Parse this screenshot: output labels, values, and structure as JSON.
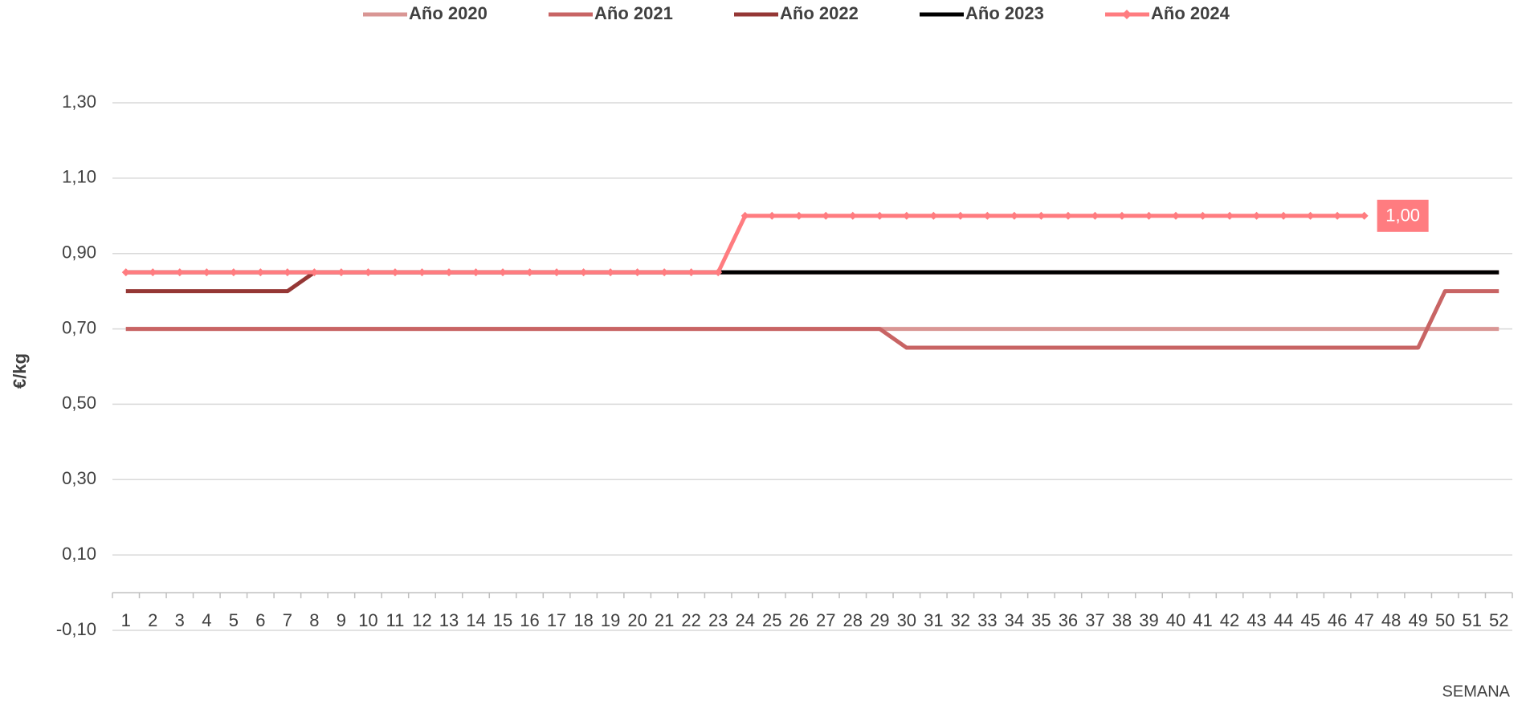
{
  "chart_data": {
    "type": "line",
    "y_label": "€/kg",
    "x_label": "SEMANA",
    "categories": [
      "1",
      "2",
      "3",
      "4",
      "5",
      "6",
      "7",
      "8",
      "9",
      "10",
      "11",
      "12",
      "13",
      "14",
      "15",
      "16",
      "17",
      "18",
      "19",
      "20",
      "21",
      "22",
      "23",
      "24",
      "25",
      "26",
      "27",
      "28",
      "29",
      "30",
      "31",
      "32",
      "33",
      "34",
      "35",
      "36",
      "37",
      "38",
      "39",
      "40",
      "41",
      "42",
      "43",
      "44",
      "45",
      "46",
      "47",
      "48",
      "49",
      "50",
      "51",
      "52"
    ],
    "ylim": [
      -0.1,
      1.3
    ],
    "yticks": [
      {
        "value": -0.1,
        "label": "-0,10"
      },
      {
        "value": 0.1,
        "label": "0,10"
      },
      {
        "value": 0.3,
        "label": "0,30"
      },
      {
        "value": 0.5,
        "label": "0,50"
      },
      {
        "value": 0.7,
        "label": "0,70"
      },
      {
        "value": 0.9,
        "label": "0,90"
      },
      {
        "value": 1.1,
        "label": "1,10"
      },
      {
        "value": 1.3,
        "label": "1,30"
      }
    ],
    "grid": true,
    "legend": "top",
    "series": [
      {
        "name": "Año 2020",
        "color": "#d99694",
        "values": [
          0.7,
          0.7,
          0.7,
          0.7,
          0.7,
          0.7,
          0.7,
          0.7,
          0.7,
          0.7,
          0.7,
          0.7,
          0.7,
          0.7,
          0.7,
          0.7,
          0.7,
          0.7,
          0.7,
          0.7,
          0.7,
          0.7,
          0.7,
          0.7,
          0.7,
          0.7,
          0.7,
          0.7,
          0.7,
          0.7,
          0.7,
          0.7,
          0.7,
          0.7,
          0.7,
          0.7,
          0.7,
          0.7,
          0.7,
          0.7,
          0.7,
          0.7,
          0.7,
          0.7,
          0.7,
          0.7,
          0.7,
          0.7,
          0.7,
          0.7,
          0.7,
          0.7
        ]
      },
      {
        "name": "Año 2021",
        "color": "#c86464",
        "values": [
          0.7,
          0.7,
          0.7,
          0.7,
          0.7,
          0.7,
          0.7,
          0.7,
          0.7,
          0.7,
          0.7,
          0.7,
          0.7,
          0.7,
          0.7,
          0.7,
          0.7,
          0.7,
          0.7,
          0.7,
          0.7,
          0.7,
          0.7,
          0.7,
          0.7,
          0.7,
          0.7,
          0.7,
          0.7,
          0.65,
          0.65,
          0.65,
          0.65,
          0.65,
          0.65,
          0.65,
          0.65,
          0.65,
          0.65,
          0.65,
          0.65,
          0.65,
          0.65,
          0.65,
          0.65,
          0.65,
          0.65,
          0.65,
          0.65,
          0.8,
          0.8,
          0.8
        ]
      },
      {
        "name": "Año 2022",
        "color": "#953735",
        "values": [
          0.8,
          0.8,
          0.8,
          0.8,
          0.8,
          0.8,
          0.8,
          0.85,
          0.85,
          0.85,
          0.85,
          0.85,
          0.85,
          0.85,
          0.85,
          0.85,
          0.85,
          0.85,
          0.85,
          0.85,
          0.85,
          0.85,
          0.85,
          0.85,
          0.85,
          0.85,
          0.85,
          0.85,
          0.85,
          0.85,
          0.85,
          0.85,
          0.85,
          0.85,
          0.85,
          0.85,
          0.85,
          0.85,
          0.85,
          0.85,
          0.85,
          0.85,
          0.85,
          0.85,
          0.85,
          0.85,
          0.85,
          0.85,
          0.85,
          0.85,
          0.85,
          0.85
        ]
      },
      {
        "name": "Año 2023",
        "color": "#000000",
        "values": [
          0.85,
          0.85,
          0.85,
          0.85,
          0.85,
          0.85,
          0.85,
          0.85,
          0.85,
          0.85,
          0.85,
          0.85,
          0.85,
          0.85,
          0.85,
          0.85,
          0.85,
          0.85,
          0.85,
          0.85,
          0.85,
          0.85,
          0.85,
          0.85,
          0.85,
          0.85,
          0.85,
          0.85,
          0.85,
          0.85,
          0.85,
          0.85,
          0.85,
          0.85,
          0.85,
          0.85,
          0.85,
          0.85,
          0.85,
          0.85,
          0.85,
          0.85,
          0.85,
          0.85,
          0.85,
          0.85,
          0.85,
          0.85,
          0.85,
          0.85,
          0.85,
          0.85
        ]
      },
      {
        "name": "Año 2024",
        "color": "#ff7c80",
        "marker": "diamond",
        "values": [
          0.85,
          0.85,
          0.85,
          0.85,
          0.85,
          0.85,
          0.85,
          0.85,
          0.85,
          0.85,
          0.85,
          0.85,
          0.85,
          0.85,
          0.85,
          0.85,
          0.85,
          0.85,
          0.85,
          0.85,
          0.85,
          0.85,
          0.85,
          1.0,
          1.0,
          1.0,
          1.0,
          1.0,
          1.0,
          1.0,
          1.0,
          1.0,
          1.0,
          1.0,
          1.0,
          1.0,
          1.0,
          1.0,
          1.0,
          1.0,
          1.0,
          1.0,
          1.0,
          1.0,
          1.0,
          1.0,
          1.0,
          null,
          null,
          null,
          null,
          null
        ],
        "value_labels": [
          null,
          null,
          null,
          null,
          null,
          null,
          null,
          null,
          null,
          null,
          null,
          null,
          null,
          null,
          null,
          null,
          null,
          null,
          null,
          null,
          null,
          null,
          null,
          null,
          null,
          null,
          null,
          null,
          null,
          null,
          null,
          null,
          null,
          null,
          null,
          null,
          null,
          null,
          null,
          null,
          null,
          null,
          null,
          null,
          null,
          null,
          "1,00",
          null,
          null,
          null,
          null,
          null
        ]
      }
    ]
  }
}
